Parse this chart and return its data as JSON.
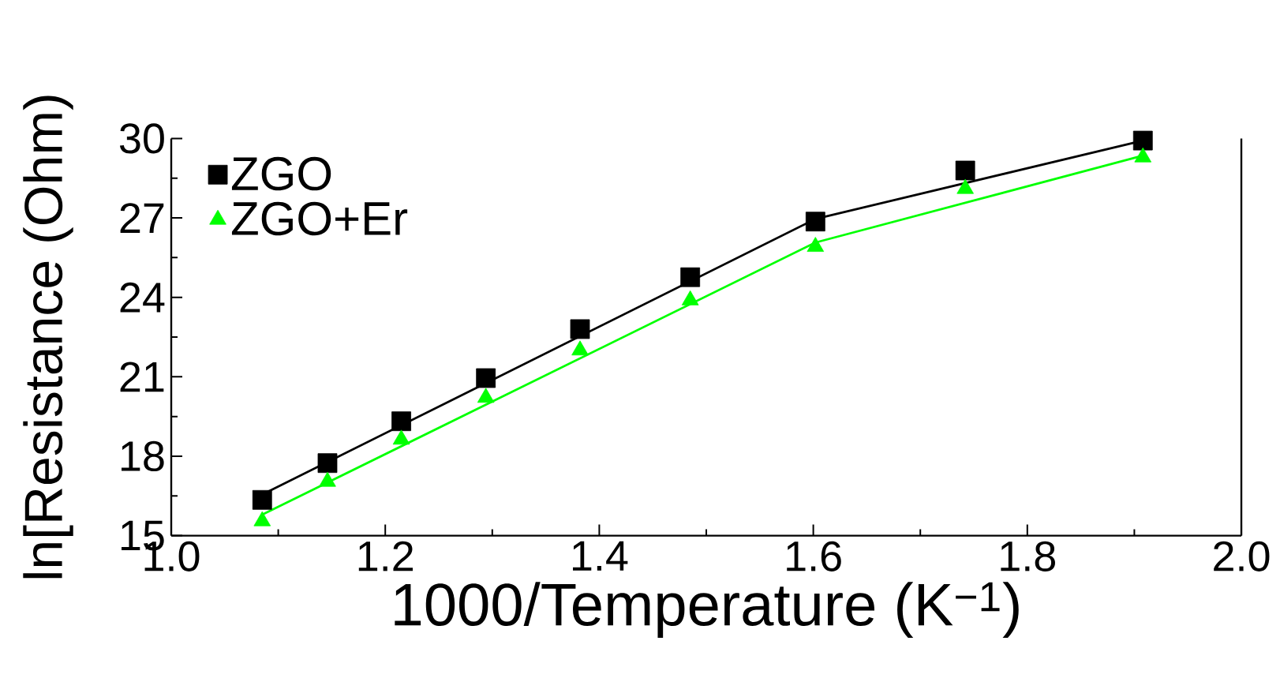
{
  "chart_data": {
    "type": "scatter",
    "xlabel": "1000/Temperature (K$^{−1}$)",
    "ylabel": "ln[Resistance (Ohm)",
    "xlim": [
      1.0,
      2.0
    ],
    "ylim": [
      15,
      30
    ],
    "xticks": [
      {
        "value": 1.0,
        "label": "1.0"
      },
      {
        "value": 1.2,
        "label": "1.2"
      },
      {
        "value": 1.4,
        "label": "1.4"
      },
      {
        "value": 1.6,
        "label": "1.6"
      },
      {
        "value": 1.8,
        "label": "1.8"
      },
      {
        "value": 2.0,
        "label": "2.0"
      }
    ],
    "yticks": [
      15,
      18,
      21,
      24,
      27,
      30
    ],
    "legend": "top left",
    "series": [
      {
        "name": "ZGO",
        "type": "scatter",
        "marker": "square",
        "color": "#000000",
        "x": [
          1.085,
          1.146,
          1.215,
          1.294,
          1.382,
          1.485,
          1.602,
          1.742,
          1.908
        ],
        "values": [
          16.35,
          17.74,
          19.32,
          20.95,
          22.8,
          24.76,
          26.86,
          28.79,
          29.92
        ]
      },
      {
        "name": "ZGO+Er",
        "type": "scatter",
        "marker": "triangle",
        "color": "#00ff00",
        "x": [
          1.085,
          1.146,
          1.215,
          1.294,
          1.382,
          1.485,
          1.602,
          1.742,
          1.908
        ],
        "values": [
          15.55,
          17.04,
          18.63,
          20.21,
          22.0,
          23.89,
          25.91,
          28.1,
          29.29
        ]
      },
      {
        "type": "line",
        "marker": "none",
        "color": "#000000",
        "x": [
          1.085,
          1.602,
          1.908
        ],
        "values": [
          16.55,
          26.96,
          29.92
        ]
      },
      {
        "type": "line",
        "marker": "none",
        "color": "#00ff00",
        "x": [
          1.085,
          1.602,
          1.908
        ],
        "values": [
          15.79,
          26.07,
          29.35
        ]
      }
    ]
  }
}
